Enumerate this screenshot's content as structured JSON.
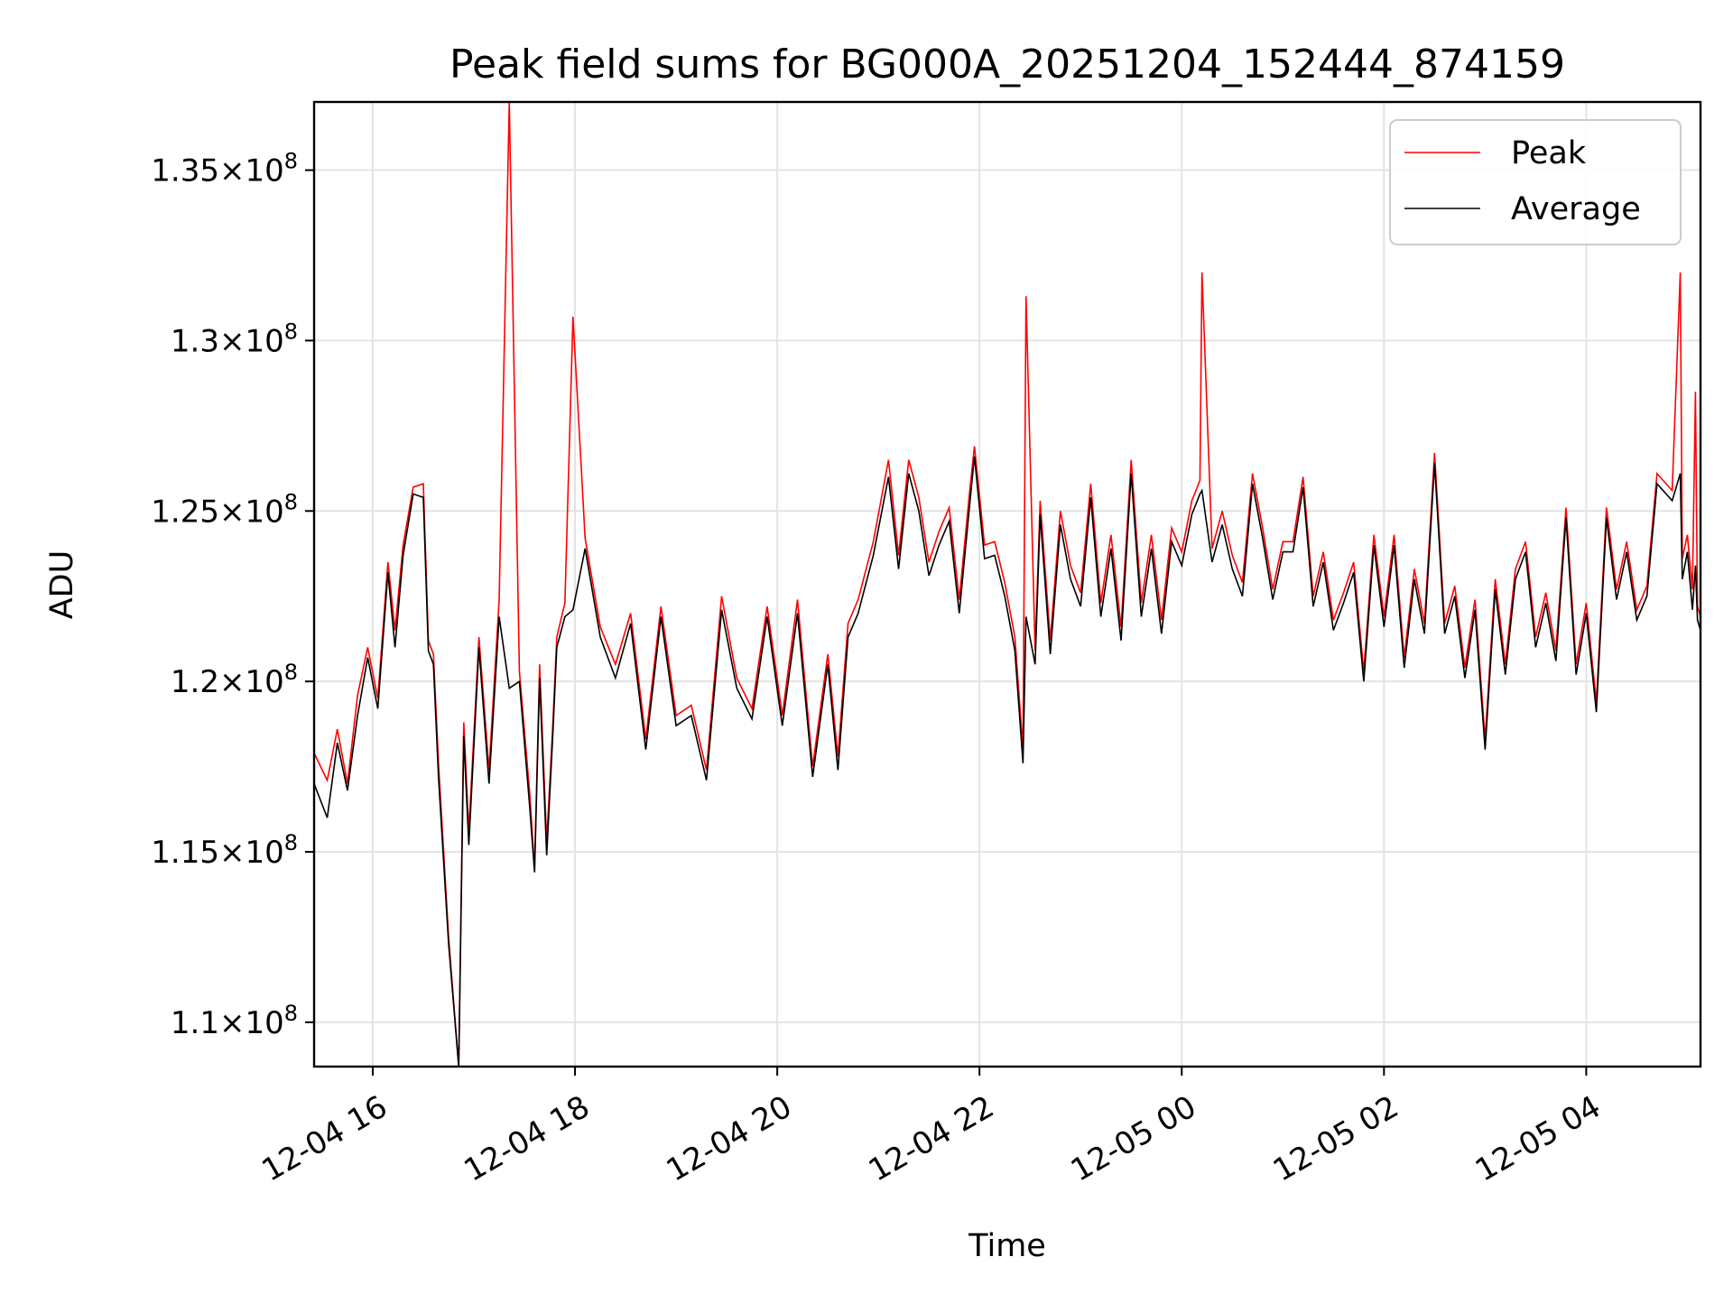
{
  "chart_data": {
    "type": "line",
    "title": "Peak field sums for BG000A_20251204_152444_874159",
    "xlabel": "Time",
    "ylabel": "ADU",
    "x_unit": "hours since 12-04 00:00",
    "xlim": [
      15.42,
      29.13
    ],
    "ylim": [
      108700000,
      137000000
    ],
    "grid": true,
    "legend_position": "top-right",
    "x_ticks": [
      {
        "value": 16,
        "label": "12-04 16"
      },
      {
        "value": 18,
        "label": "12-04 18"
      },
      {
        "value": 20,
        "label": "12-04 20"
      },
      {
        "value": 22,
        "label": "12-04 22"
      },
      {
        "value": 24,
        "label": "12-05 00"
      },
      {
        "value": 26,
        "label": "12-05 02"
      },
      {
        "value": 28,
        "label": "12-05 04"
      }
    ],
    "y_ticks": [
      {
        "value": 110000000,
        "mantissa": "1.1",
        "times": "×",
        "base": "10",
        "exp": "8"
      },
      {
        "value": 115000000,
        "mantissa": "1.15",
        "times": "×",
        "base": "10",
        "exp": "8"
      },
      {
        "value": 120000000,
        "mantissa": "1.2",
        "times": "×",
        "base": "10",
        "exp": "8"
      },
      {
        "value": 125000000,
        "mantissa": "1.25",
        "times": "×",
        "base": "10",
        "exp": "8"
      },
      {
        "value": 130000000,
        "mantissa": "1.3",
        "times": "×",
        "base": "10",
        "exp": "8"
      },
      {
        "value": 135000000,
        "mantissa": "1.35",
        "times": "×",
        "base": "10",
        "exp": "8"
      }
    ],
    "series": [
      {
        "name": "Peak",
        "color": "#ff0000",
        "x": [
          15.42,
          15.55,
          15.65,
          15.75,
          15.85,
          15.95,
          16.05,
          16.15,
          16.22,
          16.3,
          16.4,
          16.5,
          16.55,
          16.6,
          16.65,
          16.75,
          16.85,
          16.9,
          16.95,
          17.05,
          17.15,
          17.25,
          17.35,
          17.45,
          17.55,
          17.6,
          17.65,
          17.72,
          17.78,
          17.82,
          17.9,
          17.98,
          18.1,
          18.25,
          18.4,
          18.55,
          18.7,
          18.85,
          19.0,
          19.15,
          19.3,
          19.45,
          19.6,
          19.75,
          19.9,
          20.05,
          20.2,
          20.35,
          20.5,
          20.6,
          20.7,
          20.8,
          20.95,
          21.1,
          21.2,
          21.3,
          21.4,
          21.5,
          21.6,
          21.7,
          21.8,
          21.9,
          21.95,
          22.05,
          22.15,
          22.25,
          22.35,
          22.43,
          22.46,
          22.55,
          22.6,
          22.7,
          22.8,
          22.9,
          23.0,
          23.1,
          23.2,
          23.3,
          23.4,
          23.5,
          23.6,
          23.7,
          23.8,
          23.9,
          24.0,
          24.1,
          24.18,
          24.2,
          24.3,
          24.4,
          24.5,
          24.6,
          24.7,
          24.8,
          24.9,
          25.0,
          25.1,
          25.2,
          25.3,
          25.4,
          25.5,
          25.6,
          25.7,
          25.8,
          25.9,
          26.0,
          26.1,
          26.2,
          26.3,
          26.4,
          26.5,
          26.6,
          26.7,
          26.8,
          26.9,
          27.0,
          27.1,
          27.2,
          27.3,
          27.4,
          27.5,
          27.6,
          27.7,
          27.8,
          27.9,
          28.0,
          28.1,
          28.2,
          28.3,
          28.4,
          28.5,
          28.6,
          28.7,
          28.85,
          28.93,
          28.95,
          29.0,
          29.05,
          29.08,
          29.1,
          29.13
        ],
        "values": [
          117900000,
          117100000,
          118600000,
          117000000,
          119600000,
          121000000,
          119500000,
          123500000,
          121500000,
          124000000,
          125700000,
          125800000,
          121200000,
          120800000,
          117600000,
          112500000,
          108700000,
          118800000,
          115600000,
          121300000,
          117400000,
          122400000,
          137000000,
          120300000,
          116800000,
          114500000,
          120500000,
          115300000,
          118700000,
          121300000,
          122300000,
          130700000,
          124200000,
          121600000,
          120500000,
          122000000,
          118300000,
          122200000,
          119000000,
          119300000,
          117400000,
          122500000,
          120100000,
          119200000,
          122200000,
          119000000,
          122400000,
          117500000,
          120800000,
          117800000,
          121700000,
          122400000,
          124100000,
          126500000,
          123700000,
          126500000,
          125400000,
          123500000,
          124400000,
          125100000,
          122400000,
          125500000,
          126900000,
          124000000,
          124100000,
          122900000,
          121300000,
          118000000,
          131300000,
          120900000,
          125300000,
          121200000,
          125000000,
          123400000,
          122600000,
          125800000,
          122300000,
          124300000,
          121600000,
          126500000,
          122300000,
          124300000,
          121800000,
          124500000,
          123800000,
          125300000,
          125900000,
          132000000,
          123900000,
          125000000,
          123700000,
          122900000,
          126100000,
          124500000,
          122700000,
          124100000,
          124100000,
          126000000,
          122500000,
          123800000,
          121800000,
          122600000,
          123500000,
          120300000,
          124300000,
          121900000,
          124300000,
          120700000,
          123300000,
          121700000,
          126700000,
          121700000,
          122800000,
          120400000,
          122400000,
          118300000,
          123000000,
          120500000,
          123300000,
          124100000,
          121300000,
          122600000,
          120900000,
          125100000,
          120500000,
          122300000,
          119400000,
          125100000,
          122700000,
          124100000,
          122100000,
          122800000,
          126100000,
          125600000,
          132000000,
          123600000,
          124300000,
          122700000,
          128500000,
          122200000,
          121900000
        ]
      },
      {
        "name": "Average",
        "color": "#000000",
        "x": [
          15.42,
          15.55,
          15.65,
          15.75,
          15.85,
          15.95,
          16.05,
          16.15,
          16.22,
          16.3,
          16.4,
          16.5,
          16.55,
          16.6,
          16.65,
          16.75,
          16.85,
          16.9,
          16.95,
          17.05,
          17.15,
          17.25,
          17.35,
          17.45,
          17.55,
          17.6,
          17.65,
          17.72,
          17.78,
          17.82,
          17.9,
          17.98,
          18.1,
          18.25,
          18.4,
          18.55,
          18.7,
          18.85,
          19.0,
          19.15,
          19.3,
          19.45,
          19.6,
          19.75,
          19.9,
          20.05,
          20.2,
          20.35,
          20.5,
          20.6,
          20.7,
          20.8,
          20.95,
          21.1,
          21.2,
          21.3,
          21.4,
          21.5,
          21.6,
          21.7,
          21.8,
          21.9,
          21.95,
          22.05,
          22.15,
          22.25,
          22.35,
          22.43,
          22.46,
          22.55,
          22.6,
          22.7,
          22.8,
          22.9,
          23.0,
          23.1,
          23.2,
          23.3,
          23.4,
          23.5,
          23.6,
          23.7,
          23.8,
          23.9,
          24.0,
          24.1,
          24.18,
          24.2,
          24.3,
          24.4,
          24.5,
          24.6,
          24.7,
          24.8,
          24.9,
          25.0,
          25.1,
          25.2,
          25.3,
          25.4,
          25.5,
          25.6,
          25.7,
          25.8,
          25.9,
          26.0,
          26.1,
          26.2,
          26.3,
          26.4,
          26.5,
          26.6,
          26.7,
          26.8,
          26.9,
          27.0,
          27.1,
          27.2,
          27.3,
          27.4,
          27.5,
          27.6,
          27.7,
          27.8,
          27.9,
          28.0,
          28.1,
          28.2,
          28.3,
          28.4,
          28.5,
          28.6,
          28.7,
          28.85,
          28.93,
          28.95,
          29.0,
          29.05,
          29.08,
          29.1,
          29.13
        ],
        "values": [
          117000000,
          116000000,
          118200000,
          116800000,
          119000000,
          120700000,
          119200000,
          123200000,
          121000000,
          123700000,
          125500000,
          125400000,
          120900000,
          120500000,
          117200000,
          112300000,
          108700000,
          118400000,
          115200000,
          121000000,
          117000000,
          121900000,
          119800000,
          120000000,
          116400000,
          114400000,
          120100000,
          114900000,
          118400000,
          121000000,
          121900000,
          122100000,
          123900000,
          121300000,
          120100000,
          121700000,
          118000000,
          121900000,
          118700000,
          119000000,
          117100000,
          122100000,
          119800000,
          118900000,
          121900000,
          118700000,
          122000000,
          117200000,
          120500000,
          117400000,
          121300000,
          122000000,
          123700000,
          126000000,
          123300000,
          126100000,
          125000000,
          123100000,
          124000000,
          124700000,
          122000000,
          125100000,
          126600000,
          123600000,
          123700000,
          122500000,
          120900000,
          117600000,
          121900000,
          120500000,
          124900000,
          120800000,
          124600000,
          123000000,
          122200000,
          125400000,
          121900000,
          123900000,
          121200000,
          126100000,
          121900000,
          123900000,
          121400000,
          124100000,
          123400000,
          124900000,
          125500000,
          125600000,
          123500000,
          124600000,
          123300000,
          122500000,
          125800000,
          124200000,
          122400000,
          123800000,
          123800000,
          125700000,
          122200000,
          123500000,
          121500000,
          122300000,
          123200000,
          120000000,
          124000000,
          121600000,
          124000000,
          120400000,
          123000000,
          121400000,
          126400000,
          121400000,
          122500000,
          120100000,
          122100000,
          118000000,
          122700000,
          120200000,
          123000000,
          123800000,
          121000000,
          122300000,
          120600000,
          124800000,
          120200000,
          122000000,
          119100000,
          124800000,
          122400000,
          123800000,
          121800000,
          122500000,
          125800000,
          125300000,
          126100000,
          123000000,
          123800000,
          122100000,
          123400000,
          121800000,
          121500000
        ]
      }
    ]
  }
}
